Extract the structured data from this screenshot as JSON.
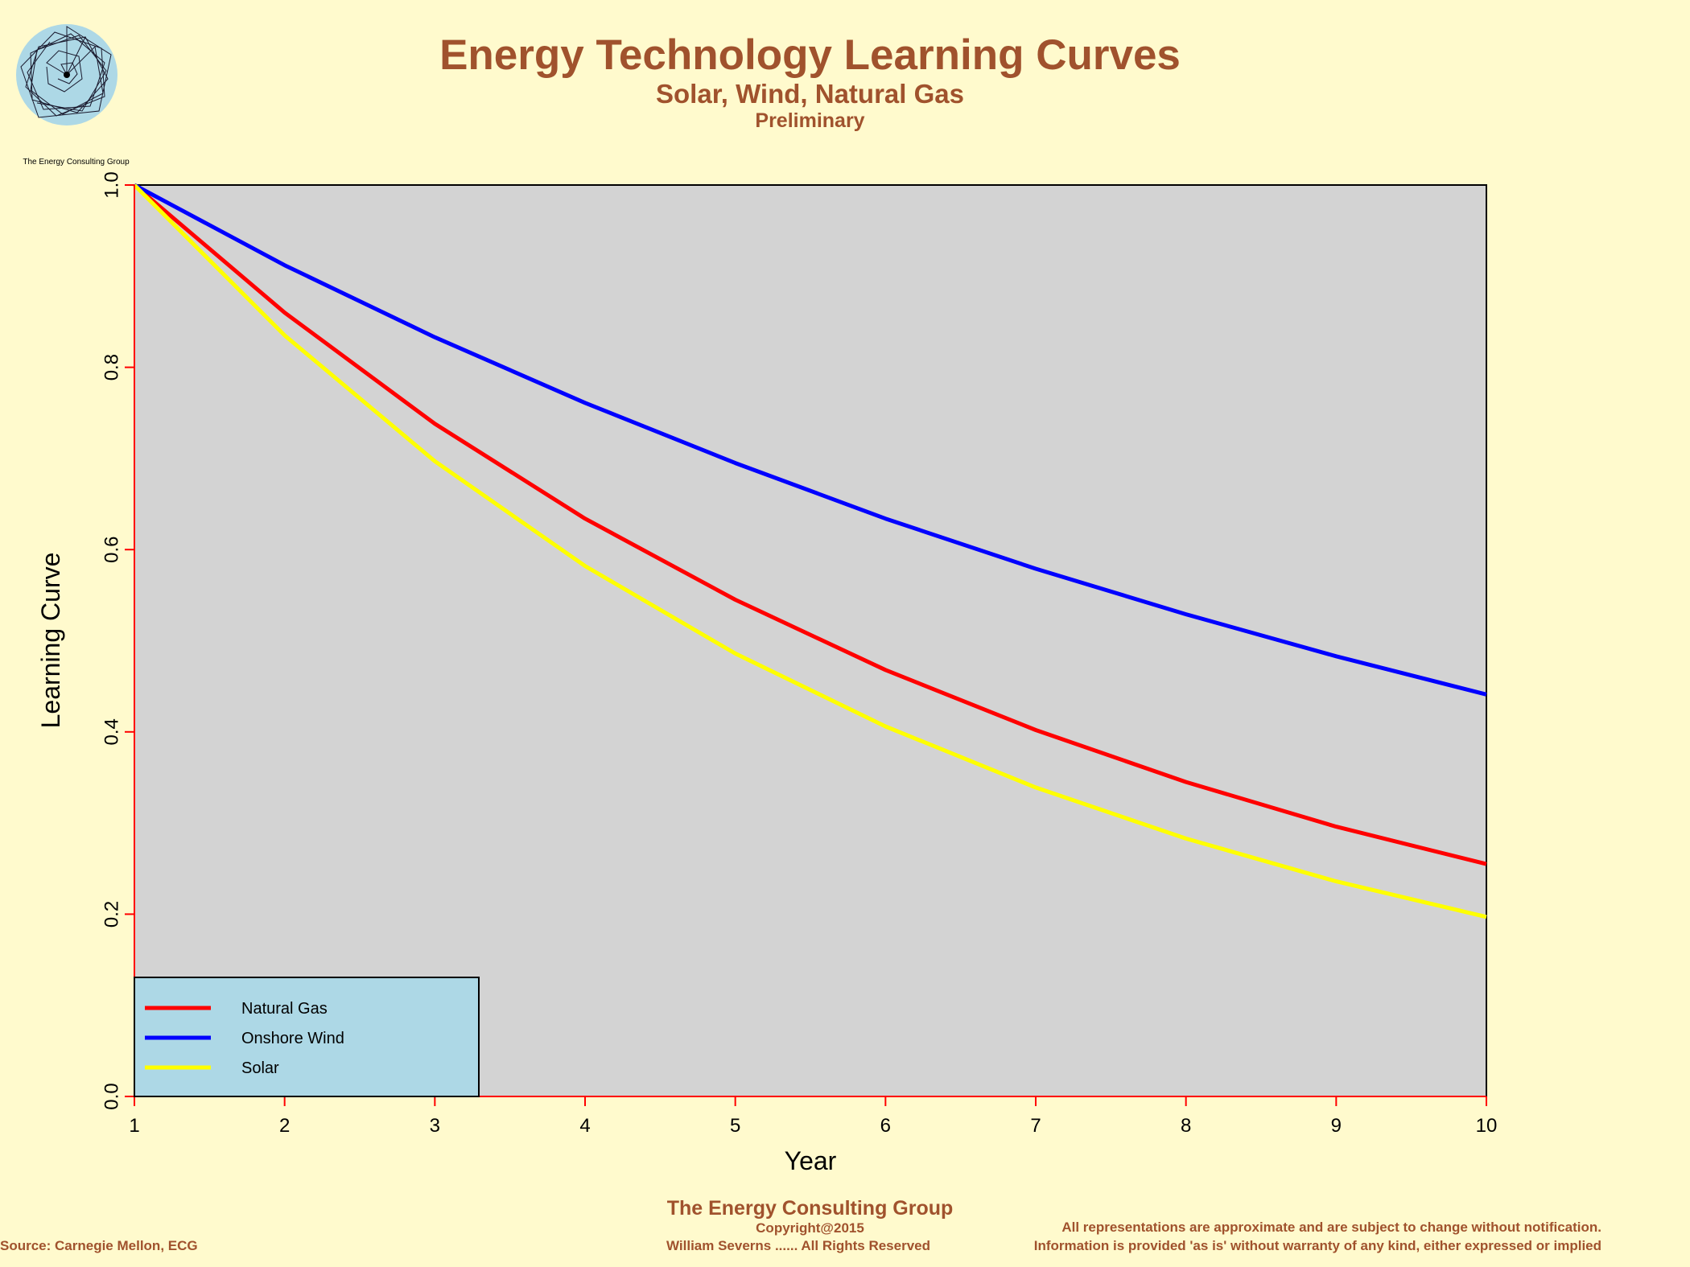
{
  "header": {
    "title": "Energy Technology Learning Curves",
    "subtitle": "Solar, Wind, Natural Gas",
    "note": "Preliminary"
  },
  "logo": {
    "caption": "The Energy Consulting Group",
    "icon": "spiral-logo-icon"
  },
  "footer": {
    "company": "The Energy Consulting Group",
    "copyright": "Copyright@2015",
    "rights": "William Severns ...... All Rights Reserved",
    "source": "Source: Carnegie Mellon, ECG",
    "disclaimer1": "All representations are approximate and are subject to change without notification.",
    "disclaimer2": "Information is provided 'as is' without warranty of any kind, either expressed or implied"
  },
  "colors": {
    "background": "#FFFACD",
    "plot_background": "#D3D3D3",
    "legend_background": "#ADD8E6",
    "text_accent": "#A0522D",
    "axis_line": "#FF0000"
  },
  "chart_data": {
    "type": "line",
    "xlabel": "Year",
    "ylabel": "Learning Curve",
    "xlim": [
      1,
      10
    ],
    "ylim": [
      0,
      1
    ],
    "x_ticks": [
      "1",
      "2",
      "3",
      "4",
      "5",
      "6",
      "7",
      "8",
      "9",
      "10"
    ],
    "y_ticks": [
      "0.0",
      "0.2",
      "0.4",
      "0.6",
      "0.8",
      "1.0"
    ],
    "grid": false,
    "legend_position": "bottom-left",
    "x": [
      1,
      2,
      3,
      4,
      5,
      6,
      7,
      8,
      9,
      10
    ],
    "series": [
      {
        "name": "Natural Gas",
        "color": "#FF0000",
        "values": [
          1.0,
          0.86,
          0.738,
          0.634,
          0.545,
          0.468,
          0.402,
          0.345,
          0.296,
          0.255
        ]
      },
      {
        "name": "Onshore Wind",
        "color": "#0000FF",
        "values": [
          1.0,
          0.912,
          0.833,
          0.761,
          0.695,
          0.634,
          0.579,
          0.529,
          0.483,
          0.441
        ]
      },
      {
        "name": "Solar",
        "color": "#FFFF00",
        "values": [
          1.0,
          0.835,
          0.697,
          0.582,
          0.486,
          0.406,
          0.339,
          0.283,
          0.236,
          0.197
        ]
      }
    ]
  }
}
